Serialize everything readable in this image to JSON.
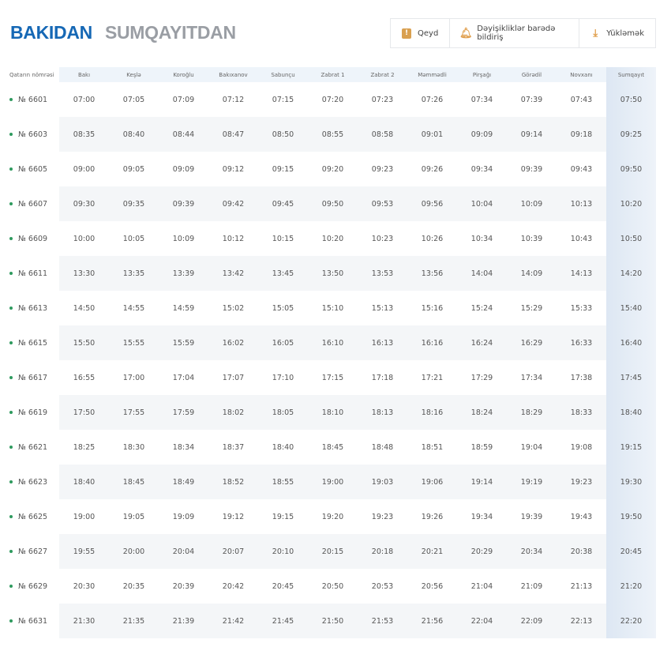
{
  "tabs": [
    {
      "label": "BAKIDAN",
      "active": true
    },
    {
      "label": "SUMQAYITDAN",
      "active": false
    }
  ],
  "actions": [
    {
      "label": "Qeyd",
      "icon": "note-icon"
    },
    {
      "label": "Dəyişikliklər barədə bildiriş",
      "icon": "bell-icon"
    },
    {
      "label": "Yükləmək",
      "icon": "download-icon"
    }
  ],
  "colors": {
    "accent": "#1668b5",
    "status_dot": "#2e9a5e",
    "icon": "#e09f4d"
  },
  "table": {
    "headers": [
      "Qatarın nömrəsi",
      "Bakı",
      "Keşlə",
      "Koroğlu",
      "Bakıxanov",
      "Sabunçu",
      "Zabrat 1",
      "Zabrat 2",
      "Məmmədli",
      "Pirşağı",
      "Görədil",
      "Novxanı",
      "Sumqayıt"
    ],
    "rows": [
      {
        "train": "№ 6601",
        "times": [
          "07:00",
          "07:05",
          "07:09",
          "07:12",
          "07:15",
          "07:20",
          "07:23",
          "07:26",
          "07:34",
          "07:39",
          "07:43",
          "07:50"
        ]
      },
      {
        "train": "№ 6603",
        "times": [
          "08:35",
          "08:40",
          "08:44",
          "08:47",
          "08:50",
          "08:55",
          "08:58",
          "09:01",
          "09:09",
          "09:14",
          "09:18",
          "09:25"
        ]
      },
      {
        "train": "№ 6605",
        "times": [
          "09:00",
          "09:05",
          "09:09",
          "09:12",
          "09:15",
          "09:20",
          "09:23",
          "09:26",
          "09:34",
          "09:39",
          "09:43",
          "09:50"
        ]
      },
      {
        "train": "№ 6607",
        "times": [
          "09:30",
          "09:35",
          "09:39",
          "09:42",
          "09:45",
          "09:50",
          "09:53",
          "09:56",
          "10:04",
          "10:09",
          "10:13",
          "10:20"
        ]
      },
      {
        "train": "№ 6609",
        "times": [
          "10:00",
          "10:05",
          "10:09",
          "10:12",
          "10:15",
          "10:20",
          "10:23",
          "10:26",
          "10:34",
          "10:39",
          "10:43",
          "10:50"
        ]
      },
      {
        "train": "№ 6611",
        "times": [
          "13:30",
          "13:35",
          "13:39",
          "13:42",
          "13:45",
          "13:50",
          "13:53",
          "13:56",
          "14:04",
          "14:09",
          "14:13",
          "14:20"
        ]
      },
      {
        "train": "№ 6613",
        "times": [
          "14:50",
          "14:55",
          "14:59",
          "15:02",
          "15:05",
          "15:10",
          "15:13",
          "15:16",
          "15:24",
          "15:29",
          "15:33",
          "15:40"
        ]
      },
      {
        "train": "№ 6615",
        "times": [
          "15:50",
          "15:55",
          "15:59",
          "16:02",
          "16:05",
          "16:10",
          "16:13",
          "16:16",
          "16:24",
          "16:29",
          "16:33",
          "16:40"
        ]
      },
      {
        "train": "№ 6617",
        "times": [
          "16:55",
          "17:00",
          "17:04",
          "17:07",
          "17:10",
          "17:15",
          "17:18",
          "17:21",
          "17:29",
          "17:34",
          "17:38",
          "17:45"
        ]
      },
      {
        "train": "№ 6619",
        "times": [
          "17:50",
          "17:55",
          "17:59",
          "18:02",
          "18:05",
          "18:10",
          "18:13",
          "18:16",
          "18:24",
          "18:29",
          "18:33",
          "18:40"
        ]
      },
      {
        "train": "№ 6621",
        "times": [
          "18:25",
          "18:30",
          "18:34",
          "18:37",
          "18:40",
          "18:45",
          "18:48",
          "18:51",
          "18:59",
          "19:04",
          "19:08",
          "19:15"
        ]
      },
      {
        "train": "№ 6623",
        "times": [
          "18:40",
          "18:45",
          "18:49",
          "18:52",
          "18:55",
          "19:00",
          "19:03",
          "19:06",
          "19:14",
          "19:19",
          "19:23",
          "19:30"
        ]
      },
      {
        "train": "№ 6625",
        "times": [
          "19:00",
          "19:05",
          "19:09",
          "19:12",
          "19:15",
          "19:20",
          "19:23",
          "19:26",
          "19:34",
          "19:39",
          "19:43",
          "19:50"
        ]
      },
      {
        "train": "№ 6627",
        "times": [
          "19:55",
          "20:00",
          "20:04",
          "20:07",
          "20:10",
          "20:15",
          "20:18",
          "20:21",
          "20:29",
          "20:34",
          "20:38",
          "20:45"
        ]
      },
      {
        "train": "№ 6629",
        "times": [
          "20:30",
          "20:35",
          "20:39",
          "20:42",
          "20:45",
          "20:50",
          "20:53",
          "20:56",
          "21:04",
          "21:09",
          "21:13",
          "21:20"
        ]
      },
      {
        "train": "№ 6631",
        "times": [
          "21:30",
          "21:35",
          "21:39",
          "21:42",
          "21:45",
          "21:50",
          "21:53",
          "21:56",
          "22:04",
          "22:09",
          "22:13",
          "22:20"
        ]
      }
    ]
  }
}
